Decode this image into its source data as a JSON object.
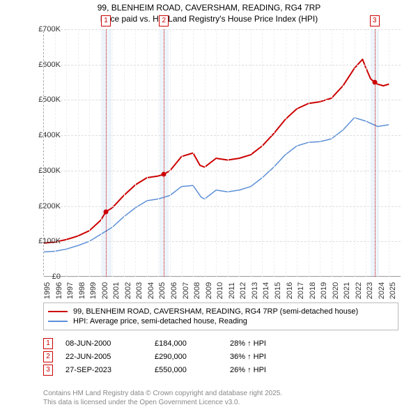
{
  "title_line1": "99, BLENHEIM ROAD, CAVERSHAM, READING, RG4 7RP",
  "title_line2": "Price paid vs. HM Land Registry's House Price Index (HPI)",
  "chart": {
    "type": "line",
    "xlim": [
      1995,
      2026
    ],
    "ylim": [
      0,
      700000
    ],
    "ytick_step": 100000,
    "yticks_labels": [
      "£0",
      "£100K",
      "£200K",
      "£300K",
      "£400K",
      "£500K",
      "£600K",
      "£700K"
    ],
    "xticks": [
      1995,
      1996,
      1997,
      1998,
      1999,
      2000,
      2001,
      2002,
      2003,
      2004,
      2005,
      2006,
      2007,
      2008,
      2009,
      2010,
      2011,
      2012,
      2013,
      2014,
      2015,
      2016,
      2017,
      2018,
      2019,
      2020,
      2021,
      2022,
      2023,
      2024,
      2025
    ],
    "background_color": "#ffffff",
    "grid_color": "#dddddd",
    "grid_v_color": "#eeeeee",
    "shade_color": "#e6f0fa",
    "marker_border_color": "#c00",
    "series": {
      "price_paid": {
        "label": "99, BLENHEIM ROAD, CAVERSHAM, READING, RG4 7RP (semi-detached house)",
        "color": "#cc0000",
        "width": 2,
        "data": [
          [
            1995,
            95000
          ],
          [
            1996,
            98000
          ],
          [
            1997,
            105000
          ],
          [
            1998,
            115000
          ],
          [
            1999,
            130000
          ],
          [
            2000,
            160000
          ],
          [
            2000.44,
            184000
          ],
          [
            2001,
            195000
          ],
          [
            2002,
            230000
          ],
          [
            2003,
            260000
          ],
          [
            2004,
            280000
          ],
          [
            2005,
            285000
          ],
          [
            2005.47,
            290000
          ],
          [
            2006,
            300000
          ],
          [
            2007,
            340000
          ],
          [
            2008,
            350000
          ],
          [
            2008.6,
            315000
          ],
          [
            2009,
            310000
          ],
          [
            2010,
            335000
          ],
          [
            2011,
            330000
          ],
          [
            2012,
            335000
          ],
          [
            2013,
            345000
          ],
          [
            2014,
            370000
          ],
          [
            2015,
            405000
          ],
          [
            2016,
            445000
          ],
          [
            2017,
            475000
          ],
          [
            2018,
            490000
          ],
          [
            2019,
            495000
          ],
          [
            2020,
            505000
          ],
          [
            2021,
            540000
          ],
          [
            2022,
            590000
          ],
          [
            2022.7,
            615000
          ],
          [
            2023,
            590000
          ],
          [
            2023.4,
            560000
          ],
          [
            2023.74,
            550000
          ],
          [
            2024,
            545000
          ],
          [
            2024.5,
            540000
          ],
          [
            2025,
            545000
          ]
        ]
      },
      "hpi": {
        "label": "HPI: Average price, semi-detached house, Reading",
        "color": "#5b8fd6",
        "width": 1.5,
        "data": [
          [
            1995,
            70000
          ],
          [
            1996,
            72000
          ],
          [
            1997,
            78000
          ],
          [
            1998,
            88000
          ],
          [
            1999,
            100000
          ],
          [
            2000,
            120000
          ],
          [
            2001,
            140000
          ],
          [
            2002,
            170000
          ],
          [
            2003,
            195000
          ],
          [
            2004,
            215000
          ],
          [
            2005,
            220000
          ],
          [
            2006,
            230000
          ],
          [
            2007,
            255000
          ],
          [
            2008,
            258000
          ],
          [
            2008.7,
            225000
          ],
          [
            2009,
            220000
          ],
          [
            2010,
            245000
          ],
          [
            2011,
            240000
          ],
          [
            2012,
            245000
          ],
          [
            2013,
            255000
          ],
          [
            2014,
            280000
          ],
          [
            2015,
            310000
          ],
          [
            2016,
            345000
          ],
          [
            2017,
            370000
          ],
          [
            2018,
            380000
          ],
          [
            2019,
            382000
          ],
          [
            2020,
            390000
          ],
          [
            2021,
            415000
          ],
          [
            2022,
            450000
          ],
          [
            2023,
            440000
          ],
          [
            2024,
            425000
          ],
          [
            2025,
            430000
          ]
        ]
      }
    },
    "sale_markers": [
      {
        "n": 1,
        "x": 2000.44,
        "y": 184000,
        "shade_from": 2000.1,
        "shade_to": 2000.9
      },
      {
        "n": 2,
        "x": 2005.47,
        "y": 290000,
        "shade_from": 2005.1,
        "shade_to": 2005.9
      },
      {
        "n": 3,
        "x": 2023.74,
        "y": 550000,
        "shade_from": 2023.4,
        "shade_to": 2024.1
      }
    ]
  },
  "legend": {
    "items": [
      {
        "color": "#cc0000",
        "label_key": "chart.series.price_paid.label"
      },
      {
        "color": "#5b8fd6",
        "label_key": "chart.series.hpi.label"
      }
    ]
  },
  "sales": [
    {
      "n": "1",
      "date": "08-JUN-2000",
      "price": "£184,000",
      "pct": "28% ↑ HPI"
    },
    {
      "n": "2",
      "date": "22-JUN-2005",
      "price": "£290,000",
      "pct": "36% ↑ HPI"
    },
    {
      "n": "3",
      "date": "27-SEP-2023",
      "price": "£550,000",
      "pct": "26% ↑ HPI"
    }
  ],
  "footer_line1": "Contains HM Land Registry data © Crown copyright and database right 2025.",
  "footer_line2": "This data is licensed under the Open Government Licence v3.0."
}
